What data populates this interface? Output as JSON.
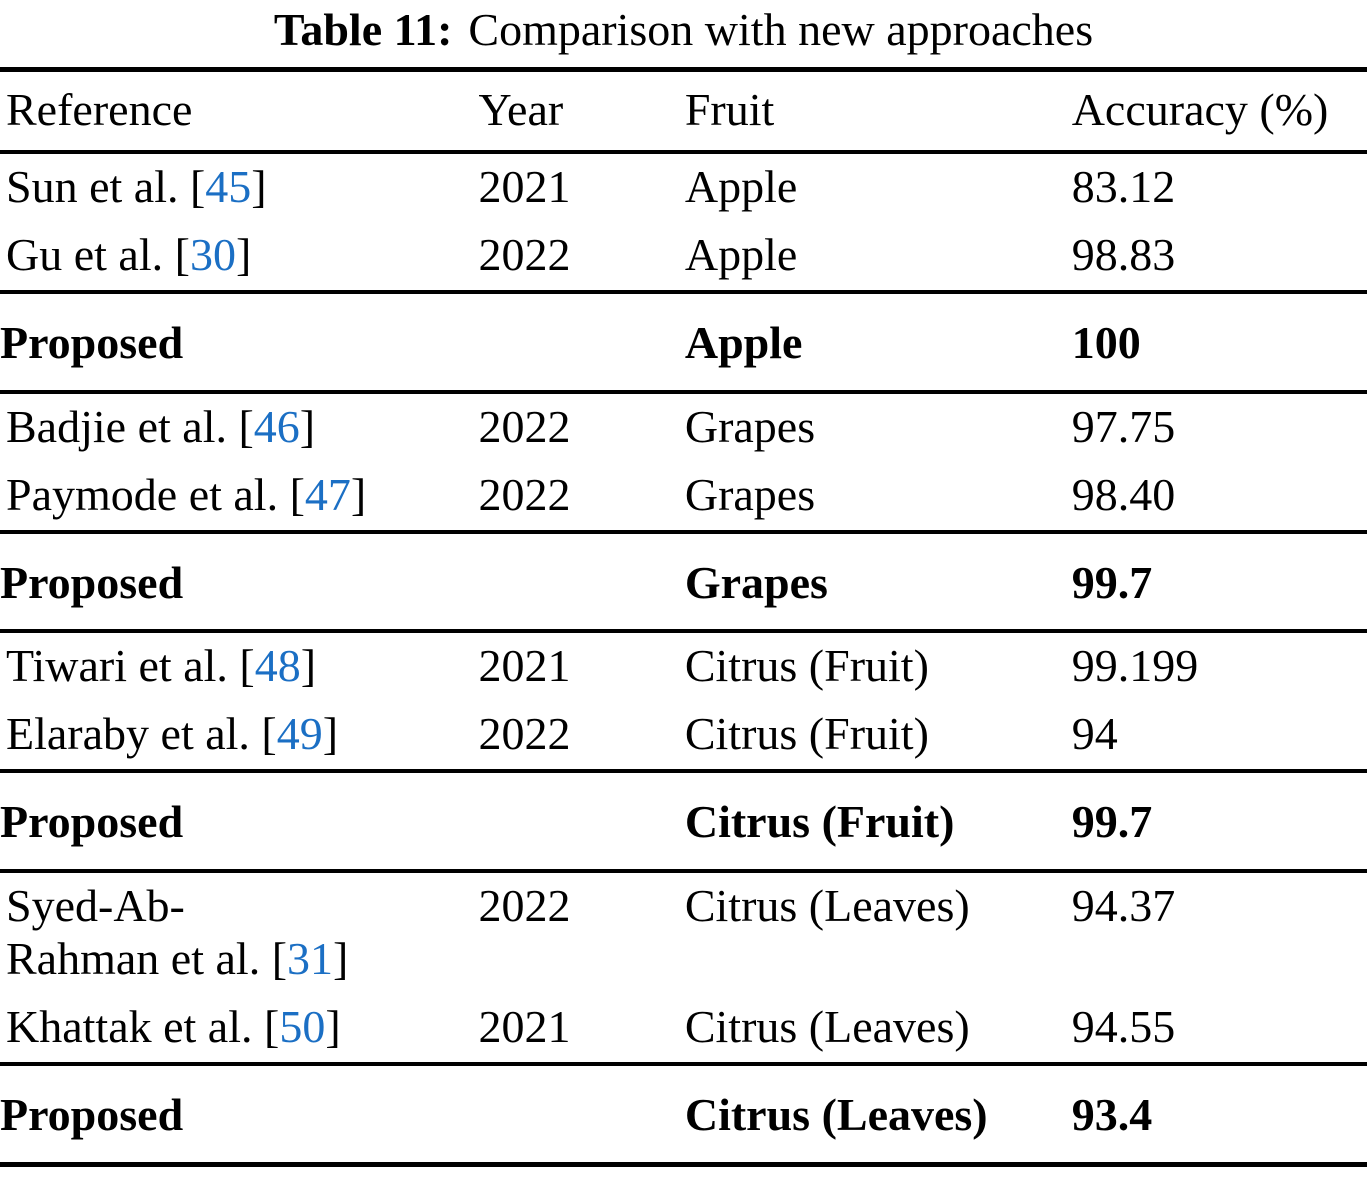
{
  "caption": {
    "label": "Table 11:",
    "text": "Comparison with new approaches"
  },
  "table": {
    "citation_color": "#1b6fc4",
    "text_color": "#000000",
    "background_color": "#ffffff",
    "columns": [
      {
        "key": "ref",
        "label": "Reference"
      },
      {
        "key": "year",
        "label": "Year"
      },
      {
        "key": "fruit",
        "label": "Fruit"
      },
      {
        "key": "acc",
        "label": "Accuracy (%)"
      }
    ],
    "groups": [
      {
        "bold": false,
        "rows": [
          {
            "ref": {
              "pre": "Sun et al. [",
              "cite": "45",
              "post": "]"
            },
            "year": "2021",
            "fruit": "Apple",
            "acc": "83.12"
          },
          {
            "ref": {
              "pre": "Gu et al. [",
              "cite": "30",
              "post": "]"
            },
            "year": "2022",
            "fruit": "Apple",
            "acc": "98.83"
          }
        ]
      },
      {
        "bold": true,
        "rows": [
          {
            "ref": {
              "pre": "Proposed",
              "cite": "",
              "post": ""
            },
            "year": "",
            "fruit": "Apple",
            "acc": "100"
          }
        ]
      },
      {
        "bold": false,
        "rows": [
          {
            "ref": {
              "pre": "Badjie et al. [",
              "cite": "46",
              "post": "]"
            },
            "year": "2022",
            "fruit": "Grapes",
            "acc": "97.75"
          },
          {
            "ref": {
              "pre": "Paymode et al. [",
              "cite": "47",
              "post": "]"
            },
            "year": "2022",
            "fruit": "Grapes",
            "acc": "98.40"
          }
        ]
      },
      {
        "bold": true,
        "rows": [
          {
            "ref": {
              "pre": "Proposed",
              "cite": "",
              "post": ""
            },
            "year": "",
            "fruit": "Grapes",
            "acc": "99.7"
          }
        ]
      },
      {
        "bold": false,
        "rows": [
          {
            "ref": {
              "pre": "Tiwari et al. [",
              "cite": "48",
              "post": "]"
            },
            "year": "2021",
            "fruit": "Citrus (Fruit)",
            "acc": "99.199"
          },
          {
            "ref": {
              "pre": "Elaraby et al. [",
              "cite": "49",
              "post": "]"
            },
            "year": "2022",
            "fruit": "Citrus (Fruit)",
            "acc": "94"
          }
        ]
      },
      {
        "bold": true,
        "rows": [
          {
            "ref": {
              "pre": "Proposed",
              "cite": "",
              "post": ""
            },
            "year": "",
            "fruit": "Citrus (Fruit)",
            "acc": "99.7"
          }
        ]
      },
      {
        "bold": false,
        "rows": [
          {
            "ref": {
              "pre": "Syed-Ab-\nRahman et al. [",
              "cite": "31",
              "post": "]"
            },
            "year": "2022",
            "fruit": "Citrus (Leaves)",
            "acc": "94.37"
          },
          {
            "ref": {
              "pre": "Khattak et al. [",
              "cite": "50",
              "post": "]"
            },
            "year": "2021",
            "fruit": "Citrus (Leaves)",
            "acc": "94.55"
          }
        ]
      },
      {
        "bold": true,
        "rows": [
          {
            "ref": {
              "pre": "Proposed",
              "cite": "",
              "post": ""
            },
            "year": "",
            "fruit": "Citrus (Leaves)",
            "acc": "93.4"
          }
        ]
      }
    ]
  }
}
